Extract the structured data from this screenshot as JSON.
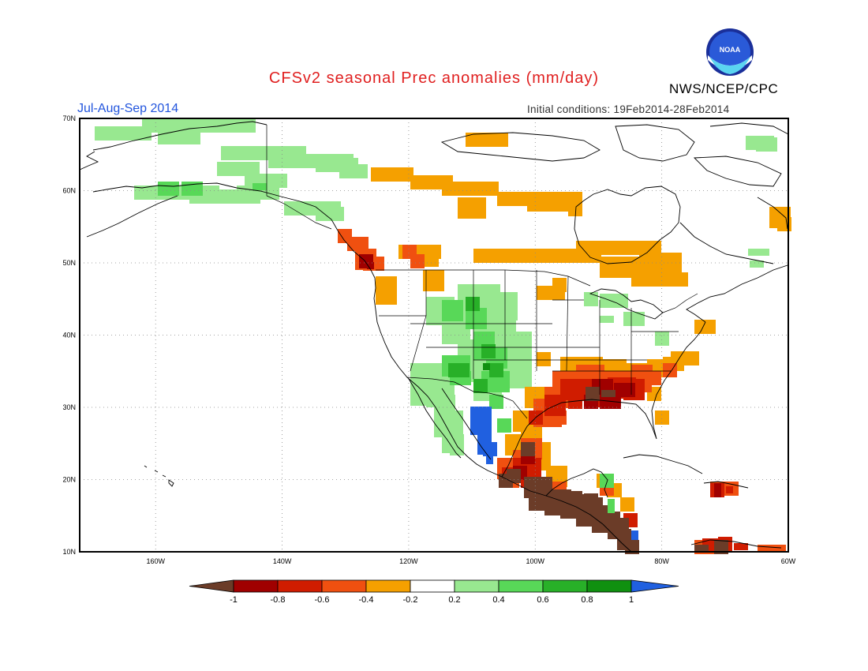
{
  "title": "CFSv2 seasonal Prec anomalies (mm/day)",
  "agency": "NWS/NCEP/CPC",
  "logo_text": "NOAA",
  "period": "Jul-Aug-Sep 2014",
  "initial_conditions": "Initial conditions: 19Feb2014-28Feb2014",
  "lat_labels": [
    "70N",
    "60N",
    "50N",
    "40N",
    "30N",
    "20N",
    "10N"
  ],
  "lon_labels": [
    "160W",
    "140W",
    "120W",
    "100W",
    "80W",
    "60W"
  ],
  "colorbar": {
    "labels": [
      "-1",
      "-0.8",
      "-0.6",
      "-0.4",
      "-0.2",
      "0.2",
      "0.4",
      "0.6",
      "0.8",
      "1"
    ],
    "colors": {
      "lt_-1": "#6b3c28",
      "-1_-0.8": "#a00000",
      "-0.8_-0.6": "#d01c00",
      "-0.6_-0.4": "#f05010",
      "-0.4_-0.2": "#f5a000",
      "-0.2_0.2": "#ffffff",
      "0.2_0.4": "#98e890",
      "0.4_0.6": "#58d858",
      "0.6_0.8": "#28b028",
      "0.8_1": "#109010",
      "gt_1": "#2060e0"
    }
  }
}
